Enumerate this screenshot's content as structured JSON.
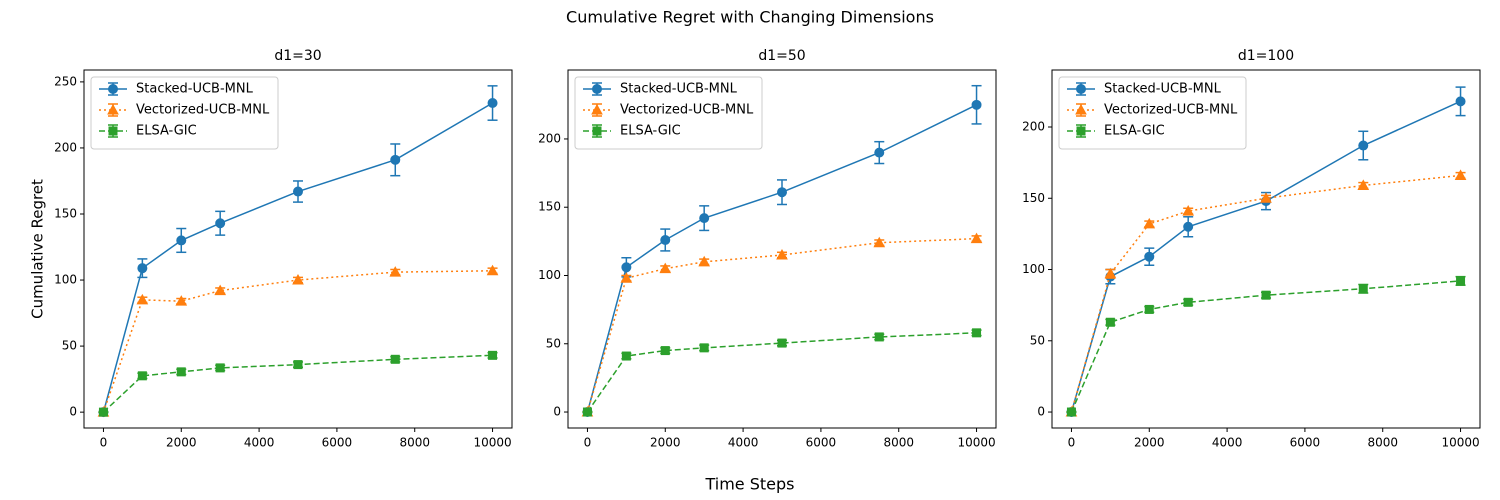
{
  "title": "Cumulative Regret with Changing Dimensions",
  "xlabel": "Time Steps",
  "chart_data": [
    {
      "type": "line",
      "title": "d1=30",
      "ylabel": "Cumulative Regret",
      "x": [
        0,
        1000,
        2000,
        3000,
        5000,
        7500,
        10000
      ],
      "xlim": [
        -500,
        10500
      ],
      "xticks": [
        0,
        2000,
        4000,
        6000,
        8000,
        10000
      ],
      "ylim": [
        -12,
        259
      ],
      "yticks": [
        0,
        50,
        100,
        150,
        200,
        250
      ],
      "legend": "upper left",
      "series": [
        {
          "name": "Stacked-UCB-MNL",
          "color": "#1f77b4",
          "marker": "circle",
          "linestyle": "solid",
          "values": [
            0,
            109,
            130,
            143,
            167,
            191,
            234
          ],
          "errors": [
            0,
            7,
            9,
            9,
            8,
            12,
            13
          ]
        },
        {
          "name": "Vectorized-UCB-MNL",
          "color": "#ff7f0e",
          "marker": "triangle",
          "linestyle": "dotted",
          "values": [
            0,
            85,
            84,
            92,
            100,
            106,
            107
          ],
          "errors": [
            0,
            2,
            2,
            2,
            2,
            2,
            2
          ]
        },
        {
          "name": "ELSA-GIC",
          "color": "#2ca02c",
          "marker": "square",
          "linestyle": "dashed",
          "values": [
            0,
            27.5,
            30.5,
            33.5,
            36,
            40,
            43
          ],
          "errors": [
            0,
            2,
            2,
            2,
            2,
            2,
            2
          ]
        }
      ]
    },
    {
      "type": "line",
      "title": "d1=50",
      "x": [
        0,
        1000,
        2000,
        3000,
        5000,
        7500,
        10000
      ],
      "xlim": [
        -500,
        10500
      ],
      "xticks": [
        0,
        2000,
        4000,
        6000,
        8000,
        10000
      ],
      "ylim": [
        -11.7,
        250.5
      ],
      "yticks": [
        0,
        50,
        100,
        150,
        200
      ],
      "legend": "upper left",
      "series": [
        {
          "name": "Stacked-UCB-MNL",
          "color": "#1f77b4",
          "marker": "circle",
          "linestyle": "solid",
          "values": [
            0,
            106,
            126,
            142,
            161,
            190,
            225
          ],
          "errors": [
            0,
            7,
            8,
            9,
            9,
            8,
            14
          ]
        },
        {
          "name": "Vectorized-UCB-MNL",
          "color": "#ff7f0e",
          "marker": "triangle",
          "linestyle": "dotted",
          "values": [
            0,
            98,
            105,
            110,
            115,
            124,
            127
          ],
          "errors": [
            0,
            2,
            2,
            2,
            2,
            2,
            2
          ]
        },
        {
          "name": "ELSA-GIC",
          "color": "#2ca02c",
          "marker": "square",
          "linestyle": "dashed",
          "values": [
            0,
            41,
            45,
            47,
            50.5,
            55,
            58
          ],
          "errors": [
            0,
            2,
            2,
            2,
            2,
            2,
            2
          ]
        }
      ]
    },
    {
      "type": "line",
      "title": "d1=100",
      "x": [
        0,
        1000,
        2000,
        3000,
        5000,
        7500,
        10000
      ],
      "xlim": [
        -500,
        10500
      ],
      "xticks": [
        0,
        2000,
        4000,
        6000,
        8000,
        10000
      ],
      "ylim": [
        -11.2,
        240
      ],
      "yticks": [
        0,
        50,
        100,
        150,
        200
      ],
      "legend": "upper left",
      "series": [
        {
          "name": "Stacked-UCB-MNL",
          "color": "#1f77b4",
          "marker": "circle",
          "linestyle": "solid",
          "values": [
            0,
            95,
            109,
            130,
            148,
            187,
            218
          ],
          "errors": [
            0,
            5,
            6,
            7,
            6,
            10,
            10
          ]
        },
        {
          "name": "Vectorized-UCB-MNL",
          "color": "#ff7f0e",
          "marker": "triangle",
          "linestyle": "dotted",
          "values": [
            0,
            97,
            132,
            141,
            150,
            159,
            166
          ],
          "errors": [
            0,
            3,
            2,
            2,
            2,
            2,
            2
          ]
        },
        {
          "name": "ELSA-GIC",
          "color": "#2ca02c",
          "marker": "square",
          "linestyle": "dashed",
          "values": [
            0,
            63,
            72,
            77,
            82,
            86.5,
            92
          ],
          "errors": [
            0,
            2,
            2,
            2,
            2,
            3,
            3
          ]
        }
      ]
    }
  ]
}
